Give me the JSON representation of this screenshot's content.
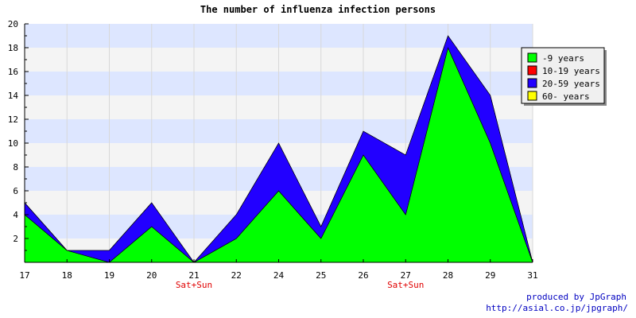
{
  "chart_data": {
    "type": "area",
    "stacked": true,
    "title": "The number of influenza infection persons",
    "categories": [
      "17",
      "18",
      "19",
      "20",
      "21",
      "22",
      "24",
      "25",
      "26",
      "27",
      "28",
      "29",
      "31"
    ],
    "category_sublabels": [
      "",
      "",
      "",
      "",
      "Sat+Sun",
      "",
      "",
      "",
      "",
      "Sat+Sun",
      "",
      "",
      ""
    ],
    "series": [
      {
        "name": "-9 years",
        "color": "#00ff00",
        "values": [
          4,
          1,
          0,
          3,
          0,
          2,
          6,
          2,
          9,
          4,
          18,
          10,
          0
        ]
      },
      {
        "name": "10-19 years",
        "color": "#ff0000",
        "values": [
          0,
          0,
          0,
          0,
          0,
          0,
          0,
          0,
          0,
          0,
          0,
          0,
          0
        ]
      },
      {
        "name": "20-59 years",
        "color": "#2200ff",
        "values": [
          1,
          0,
          1,
          2,
          0,
          2,
          4,
          1,
          2,
          5,
          1,
          4,
          0
        ]
      },
      {
        "name": "60- years",
        "color": "#ffff00",
        "values": [
          0,
          0,
          0,
          0,
          0,
          0,
          0,
          0,
          0,
          0,
          0,
          0,
          0
        ]
      }
    ],
    "ylim": [
      0,
      20
    ],
    "y_ticks": [
      2,
      4,
      6,
      8,
      10,
      12,
      14,
      16,
      18,
      20
    ],
    "grid": true,
    "band_colors": [
      "#dde6ff",
      "#f4f4f4"
    ],
    "legend_position": "top-right"
  },
  "credits": {
    "line1": "produced by JpGraph",
    "line2": "http://asial.co.jp/jpgraph/"
  }
}
